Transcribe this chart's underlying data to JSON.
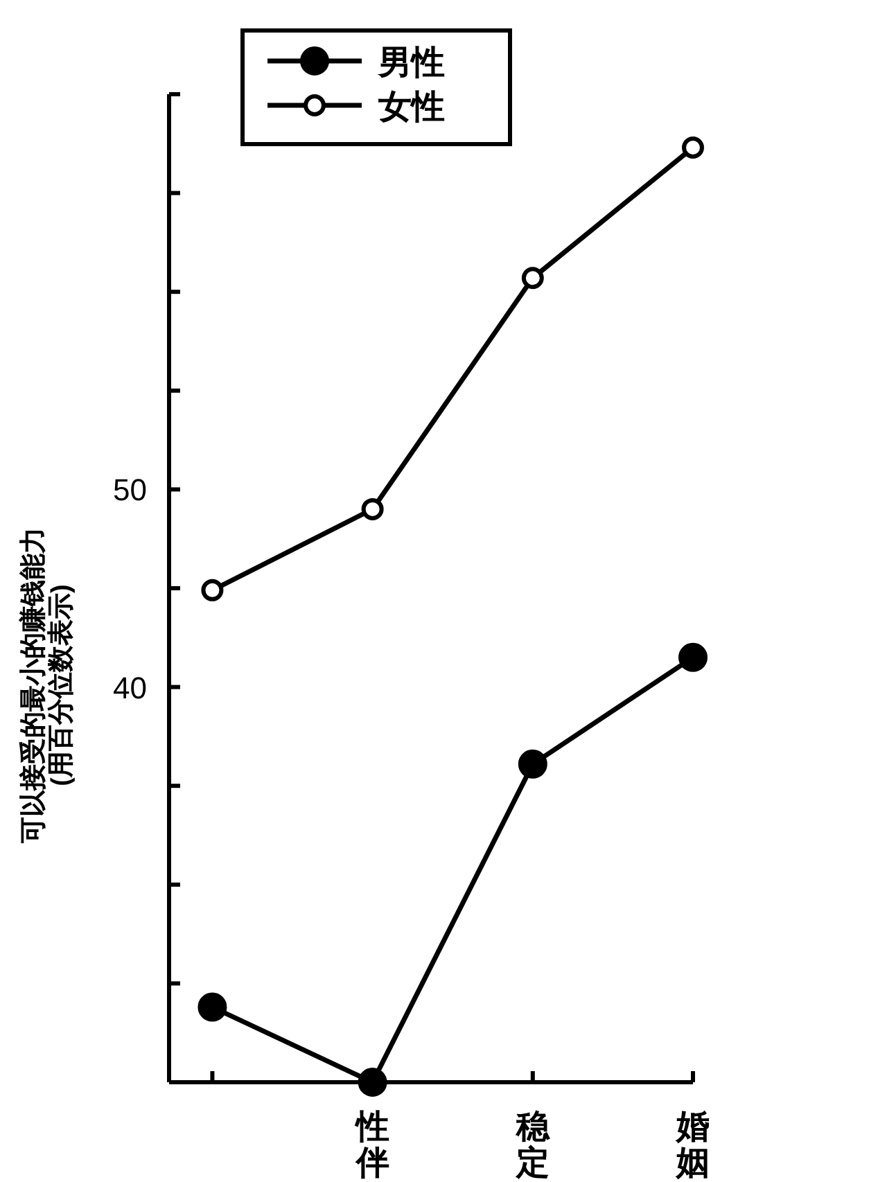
{
  "chart_data": {
    "type": "line",
    "ylabel": "可以接受的最小的赚钱能力\n(用百分位数表示)",
    "categories": [
      null,
      "性伴",
      "稳定",
      "婚姻"
    ],
    "series": [
      {
        "name": "男性",
        "color": "#000000",
        "values": [
          23.8,
          20,
          36.1,
          41.5
        ]
      },
      {
        "name": "女性",
        "color": "#000000",
        "values": [
          44.9,
          49.0,
          60.7,
          67.3
        ]
      }
    ],
    "ylim": [
      20,
      70
    ],
    "yticks": [
      {
        "value": 20,
        "label": null
      },
      {
        "value": 25,
        "label": null
      },
      {
        "value": 30,
        "label": null
      },
      {
        "value": 35,
        "label": null
      },
      40,
      {
        "value": 45,
        "label": null
      },
      50,
      {
        "value": 55,
        "label": null
      },
      {
        "value": 60,
        "label": null
      },
      {
        "value": 65,
        "label": null
      },
      {
        "value": 70,
        "label": null
      }
    ],
    "grid": false,
    "marker": "circle",
    "legend": "top left",
    "line_style": "solid"
  }
}
